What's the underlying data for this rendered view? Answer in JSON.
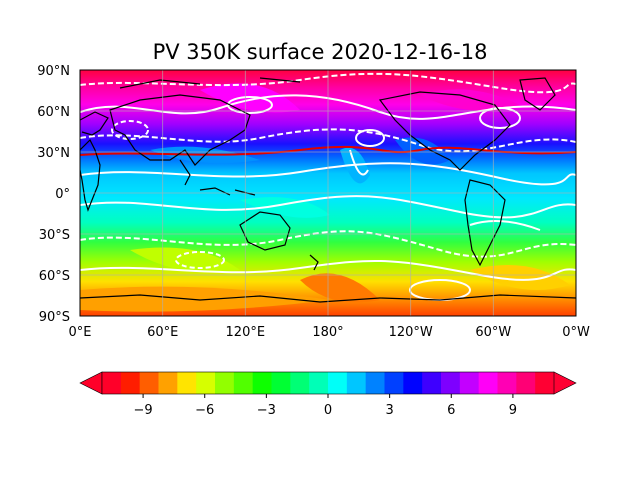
{
  "title": "PV 350K surface 2020-12-16-18",
  "map": {
    "projection": "PlateCarree",
    "lon_range": [
      0,
      360
    ],
    "lat_range": [
      -90,
      90
    ],
    "grid": true,
    "coastlines": true,
    "x_tick_labels": [
      "0°E",
      "60°E",
      "120°E",
      "180°",
      "120°W",
      "60°W",
      "0°W"
    ],
    "y_tick_labels": [
      "90°N",
      "60°N",
      "30°N",
      "0°",
      "30°S",
      "60°S",
      "90°S"
    ]
  },
  "colorbar": {
    "orientation": "horizontal",
    "range": [
      -11,
      11
    ],
    "step": 1,
    "extend": "both",
    "colormap": "gist_rainbow",
    "tick_labels": [
      "−9",
      "−6",
      "−3",
      "0",
      "3",
      "6",
      "9"
    ],
    "tick_values": [
      -9,
      -6,
      -3,
      0,
      3,
      6,
      9
    ],
    "colors": [
      "#ff0029",
      "#ff1d00",
      "#ff5e00",
      "#ffa100",
      "#ffe400",
      "#d6ff00",
      "#92ff00",
      "#51ff00",
      "#0eff00",
      "#00ff33",
      "#00ff75",
      "#00ffb7",
      "#00fff8",
      "#00c6ff",
      "#0082ff",
      "#0040ff",
      "#0003ff",
      "#3e00ff",
      "#7e00ff",
      "#c300ff",
      "#ff00f7",
      "#ff00b4",
      "#ff0075",
      "#ff0033"
    ]
  }
}
